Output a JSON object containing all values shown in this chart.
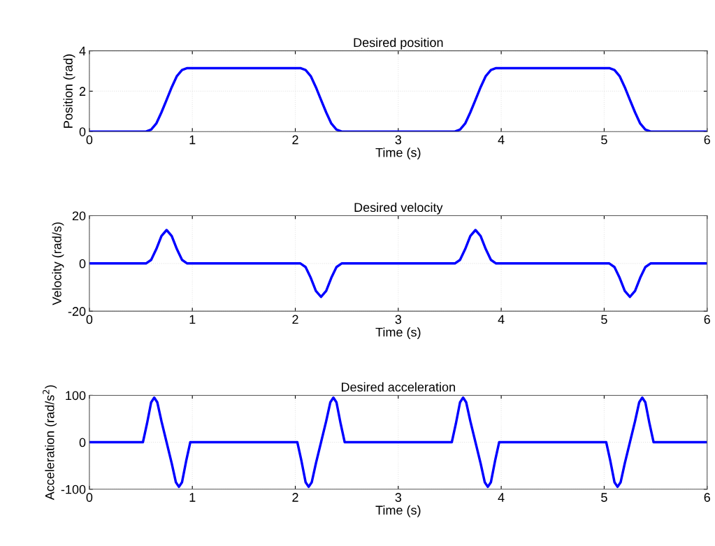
{
  "chart_data": [
    {
      "type": "line",
      "title": "Desired position",
      "xlabel": "Time (s)",
      "ylabel": "Position (rad)",
      "xlim": [
        0,
        6
      ],
      "xticks": [
        0,
        1,
        2,
        3,
        4,
        5,
        6
      ],
      "ylim": [
        0,
        4
      ],
      "yticks": [
        0,
        2,
        4
      ],
      "grid": true,
      "line_style": "solid",
      "series": [
        {
          "color": "#0000ff",
          "x": [
            0,
            0.55,
            0.6,
            0.65,
            0.7,
            0.75,
            0.8,
            0.85,
            0.9,
            0.95,
            2.05,
            2.1,
            2.15,
            2.2,
            2.25,
            2.3,
            2.35,
            2.4,
            2.45,
            3.55,
            3.6,
            3.65,
            3.7,
            3.75,
            3.8,
            3.85,
            3.9,
            3.95,
            5.05,
            5.1,
            5.15,
            5.2,
            5.25,
            5.3,
            5.35,
            5.4,
            5.45,
            6
          ],
          "values": [
            0,
            0,
            0.1,
            0.4,
            0.95,
            1.57,
            2.2,
            2.75,
            3.05,
            3.14,
            3.14,
            3.05,
            2.75,
            2.2,
            1.57,
            0.95,
            0.4,
            0.1,
            0,
            0,
            0.1,
            0.4,
            0.95,
            1.57,
            2.2,
            2.75,
            3.05,
            3.14,
            3.14,
            3.05,
            2.75,
            2.2,
            1.57,
            0.95,
            0.4,
            0.1,
            0,
            0
          ]
        }
      ]
    },
    {
      "type": "line",
      "title": "Desired velocity",
      "xlabel": "Time (s)",
      "ylabel": "Velocity (rad/s)",
      "xlim": [
        0,
        6
      ],
      "xticks": [
        0,
        1,
        2,
        3,
        4,
        5,
        6
      ],
      "ylim": [
        -20,
        20
      ],
      "yticks": [
        -20,
        0,
        20
      ],
      "grid": true,
      "line_style": "solid",
      "series": [
        {
          "color": "#0000ff",
          "x": [
            0,
            0.55,
            0.6,
            0.65,
            0.7,
            0.75,
            0.8,
            0.85,
            0.9,
            0.95,
            2.05,
            2.1,
            2.15,
            2.2,
            2.25,
            2.3,
            2.35,
            2.4,
            2.45,
            3.55,
            3.6,
            3.65,
            3.7,
            3.75,
            3.8,
            3.85,
            3.9,
            3.95,
            5.05,
            5.1,
            5.15,
            5.2,
            5.25,
            5.3,
            5.35,
            5.4,
            5.45,
            6
          ],
          "values": [
            0,
            0,
            1.5,
            6,
            11.5,
            14,
            11.5,
            6,
            1.5,
            0,
            0,
            -1.5,
            -6,
            -11.5,
            -14,
            -11.5,
            -6,
            -1.5,
            0,
            0,
            1.5,
            6,
            11.5,
            14,
            11.5,
            6,
            1.5,
            0,
            0,
            -1.5,
            -6,
            -11.5,
            -14,
            -11.5,
            -6,
            -1.5,
            0,
            0
          ]
        }
      ]
    },
    {
      "type": "line",
      "title": "Desired acceleration",
      "xlabel": "Time (s)",
      "ylabel": "Acceleration (rad/s$^{2}$)",
      "xlim": [
        0,
        6
      ],
      "xticks": [
        0,
        1,
        2,
        3,
        4,
        5,
        6
      ],
      "ylim": [
        -100,
        100
      ],
      "yticks": [
        -100,
        0,
        100
      ],
      "grid": true,
      "line_style": "solid",
      "series": [
        {
          "color": "#0000ff",
          "x": [
            0,
            0.52,
            0.56,
            0.6,
            0.63,
            0.66,
            0.7,
            0.75,
            0.8,
            0.84,
            0.87,
            0.9,
            0.94,
            0.98,
            2.02,
            2.06,
            2.1,
            2.13,
            2.16,
            2.2,
            2.25,
            2.3,
            2.34,
            2.37,
            2.4,
            2.44,
            2.48,
            3.52,
            3.56,
            3.6,
            3.63,
            3.66,
            3.7,
            3.75,
            3.8,
            3.84,
            3.87,
            3.9,
            3.94,
            3.98,
            5.02,
            5.06,
            5.1,
            5.13,
            5.16,
            5.2,
            5.25,
            5.3,
            5.34,
            5.37,
            5.4,
            5.44,
            5.48,
            6
          ],
          "values": [
            0,
            0,
            40,
            85,
            95,
            85,
            45,
            0,
            -45,
            -85,
            -95,
            -85,
            -40,
            0,
            0,
            -40,
            -85,
            -95,
            -85,
            -45,
            0,
            45,
            85,
            95,
            85,
            40,
            0,
            0,
            40,
            85,
            95,
            85,
            45,
            0,
            -45,
            -85,
            -95,
            -85,
            -40,
            0,
            0,
            -40,
            -85,
            -95,
            -85,
            -45,
            0,
            45,
            85,
            95,
            85,
            40,
            0,
            0
          ]
        }
      ]
    }
  ]
}
